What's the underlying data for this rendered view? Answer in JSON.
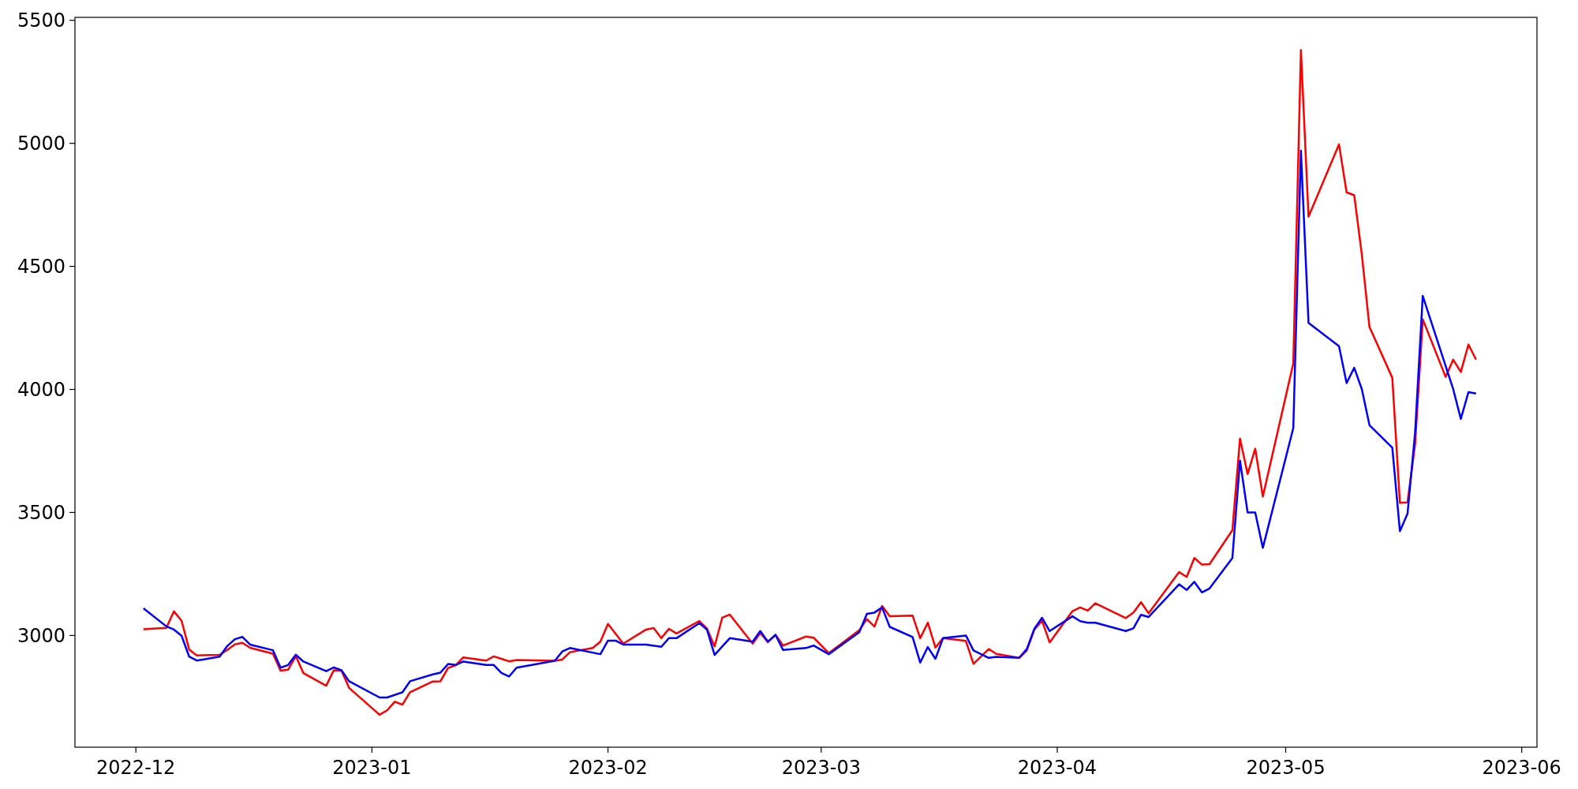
{
  "chart_data": {
    "type": "line",
    "xlim": [
      "2022-11-23",
      "2023-06-03"
    ],
    "ylim": [
      2546,
      5512
    ],
    "xticks": [
      "2022-12",
      "2023-01",
      "2023-02",
      "2023-03",
      "2023-04",
      "2023-05",
      "2023-06"
    ],
    "yticks": [
      3000,
      3500,
      4000,
      4500,
      5000,
      5500
    ],
    "grid": false,
    "marker": "none",
    "line_style": "solid",
    "series": [
      {
        "color": "#ff0000",
        "x": [
          "2022-12-02",
          "2022-12-05",
          "2022-12-06",
          "2022-12-07",
          "2022-12-08",
          "2022-12-09",
          "2022-12-12",
          "2022-12-13",
          "2022-12-14",
          "2022-12-15",
          "2022-12-16",
          "2022-12-19",
          "2022-12-20",
          "2022-12-21",
          "2022-12-22",
          "2022-12-23",
          "2022-12-26",
          "2022-12-27",
          "2022-12-28",
          "2022-12-29",
          "2023-01-02",
          "2023-01-03",
          "2023-01-04",
          "2023-01-05",
          "2023-01-06",
          "2023-01-09",
          "2023-01-10",
          "2023-01-11",
          "2023-01-12",
          "2023-01-13",
          "2023-01-16",
          "2023-01-17",
          "2023-01-18",
          "2023-01-19",
          "2023-01-20",
          "2023-01-25",
          "2023-01-26",
          "2023-01-27",
          "2023-01-30",
          "2023-01-31",
          "2023-02-01",
          "2023-02-03",
          "2023-02-06",
          "2023-02-07",
          "2023-02-08",
          "2023-02-09",
          "2023-02-10",
          "2023-02-13",
          "2023-02-14",
          "2023-02-15",
          "2023-02-16",
          "2023-02-17",
          "2023-02-20",
          "2023-02-21",
          "2023-02-22",
          "2023-02-23",
          "2023-02-24",
          "2023-02-27",
          "2023-02-28",
          "2023-03-02",
          "2023-03-06",
          "2023-03-07",
          "2023-03-08",
          "2023-03-09",
          "2023-03-10",
          "2023-03-13",
          "2023-03-14",
          "2023-03-15",
          "2023-03-16",
          "2023-03-17",
          "2023-03-20",
          "2023-03-21",
          "2023-03-23",
          "2023-03-24",
          "2023-03-27",
          "2023-03-28",
          "2023-03-29",
          "2023-03-30",
          "2023-03-31",
          "2023-04-03",
          "2023-04-04",
          "2023-04-05",
          "2023-04-06",
          "2023-04-10",
          "2023-04-11",
          "2023-04-12",
          "2023-04-13",
          "2023-04-17",
          "2023-04-18",
          "2023-04-19",
          "2023-04-20",
          "2023-04-21",
          "2023-04-24",
          "2023-04-25",
          "2023-04-26",
          "2023-04-27",
          "2023-04-28",
          "2023-05-02",
          "2023-05-03",
          "2023-05-04",
          "2023-05-08",
          "2023-05-09",
          "2023-05-10",
          "2023-05-11",
          "2023-05-12",
          "2023-05-15",
          "2023-05-16",
          "2023-05-17",
          "2023-05-18",
          "2023-05-19",
          "2023-05-22",
          "2023-05-23",
          "2023-05-24",
          "2023-05-25",
          "2023-05-26"
        ],
        "values": [
          3025,
          3031,
          3098,
          3060,
          2943,
          2919,
          2921,
          2941,
          2964,
          2970,
          2950,
          2926,
          2857,
          2861,
          2916,
          2847,
          2796,
          2859,
          2857,
          2787,
          2678,
          2696,
          2731,
          2719,
          2769,
          2813,
          2814,
          2868,
          2879,
          2911,
          2898,
          2915,
          2905,
          2895,
          2900,
          2897,
          2902,
          2932,
          2949,
          2975,
          3047,
          2967,
          3024,
          3030,
          2989,
          3027,
          3008,
          3059,
          3028,
          2956,
          3072,
          3085,
          2967,
          3010,
          2973,
          3003,
          2959,
          2996,
          2991,
          2928,
          3021,
          3067,
          3036,
          3120,
          3078,
          3081,
          2989,
          3052,
          2951,
          2989,
          2978,
          2885,
          2945,
          2925,
          2909,
          2939,
          3024,
          3060,
          2972,
          3099,
          3114,
          3101,
          3131,
          3071,
          3093,
          3135,
          3090,
          3258,
          3238,
          3315,
          3288,
          3290,
          3428,
          3800,
          3656,
          3759,
          3565,
          4106,
          5379,
          4702,
          4996,
          4801,
          4789,
          4548,
          4254,
          4047,
          3539,
          3541,
          3779,
          4285,
          4051,
          4121,
          4071,
          4182,
          4121
        ]
      },
      {
        "color": "#0000ff",
        "x": [
          "2022-12-02",
          "2022-12-05",
          "2022-12-06",
          "2022-12-07",
          "2022-12-08",
          "2022-12-09",
          "2022-12-12",
          "2022-12-13",
          "2022-12-14",
          "2022-12-15",
          "2022-12-16",
          "2022-12-19",
          "2022-12-20",
          "2022-12-21",
          "2022-12-22",
          "2022-12-23",
          "2022-12-26",
          "2022-12-27",
          "2022-12-28",
          "2022-12-29",
          "2023-01-02",
          "2023-01-03",
          "2023-01-05",
          "2023-01-06",
          "2023-01-09",
          "2023-01-10",
          "2023-01-11",
          "2023-01-12",
          "2023-01-13",
          "2023-01-16",
          "2023-01-17",
          "2023-01-18",
          "2023-01-19",
          "2023-01-20",
          "2023-01-25",
          "2023-01-26",
          "2023-01-27",
          "2023-01-31",
          "2023-02-01",
          "2023-02-02",
          "2023-02-03",
          "2023-02-06",
          "2023-02-08",
          "2023-02-09",
          "2023-02-10",
          "2023-02-13",
          "2023-02-14",
          "2023-02-15",
          "2023-02-16",
          "2023-02-17",
          "2023-02-20",
          "2023-02-21",
          "2023-02-22",
          "2023-02-23",
          "2023-02-24",
          "2023-02-27",
          "2023-02-28",
          "2023-03-02",
          "2023-03-06",
          "2023-03-07",
          "2023-03-08",
          "2023-03-09",
          "2023-03-10",
          "2023-03-13",
          "2023-03-14",
          "2023-03-15",
          "2023-03-16",
          "2023-03-17",
          "2023-03-20",
          "2023-03-21",
          "2023-03-23",
          "2023-03-24",
          "2023-03-27",
          "2023-03-28",
          "2023-03-29",
          "2023-03-30",
          "2023-03-31",
          "2023-04-03",
          "2023-04-04",
          "2023-04-05",
          "2023-04-06",
          "2023-04-10",
          "2023-04-11",
          "2023-04-12",
          "2023-04-13",
          "2023-04-17",
          "2023-04-18",
          "2023-04-19",
          "2023-04-20",
          "2023-04-21",
          "2023-04-24",
          "2023-04-25",
          "2023-04-26",
          "2023-04-27",
          "2023-04-28",
          "2023-05-02",
          "2023-05-03",
          "2023-05-04",
          "2023-05-08",
          "2023-05-09",
          "2023-05-10",
          "2023-05-11",
          "2023-05-12",
          "2023-05-15",
          "2023-05-16",
          "2023-05-17",
          "2023-05-18",
          "2023-05-19",
          "2023-05-23",
          "2023-05-24",
          "2023-05-25",
          "2023-05-26"
        ],
        "values": [
          3110,
          3037,
          3024,
          2999,
          2914,
          2898,
          2914,
          2957,
          2985,
          2994,
          2963,
          2940,
          2869,
          2880,
          2922,
          2894,
          2855,
          2870,
          2859,
          2814,
          2748,
          2748,
          2769,
          2814,
          2842,
          2849,
          2884,
          2880,
          2894,
          2880,
          2880,
          2848,
          2833,
          2869,
          2897,
          2935,
          2949,
          2924,
          2979,
          2979,
          2963,
          2963,
          2954,
          2989,
          2989,
          3050,
          3024,
          2921,
          2955,
          2989,
          2975,
          3018,
          2975,
          3002,
          2941,
          2949,
          2959,
          2924,
          3013,
          3088,
          3093,
          3114,
          3035,
          2994,
          2890,
          2953,
          2905,
          2989,
          3000,
          2939,
          2909,
          2913,
          2909,
          2945,
          3028,
          3072,
          3018,
          3078,
          3058,
          3052,
          3052,
          3018,
          3029,
          3084,
          3075,
          3208,
          3185,
          3218,
          3175,
          3191,
          3315,
          3711,
          3500,
          3500,
          3356,
          3843,
          4970,
          4270,
          4176,
          4026,
          4088,
          4001,
          3855,
          3763,
          3424,
          3495,
          3827,
          4380,
          4001,
          3880,
          3989,
          3983
        ]
      }
    ]
  }
}
